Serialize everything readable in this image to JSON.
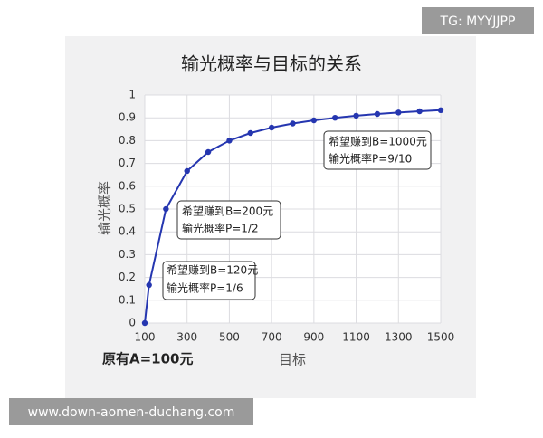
{
  "chart_data": {
    "type": "line",
    "title": "输光概率与目标的关系",
    "x_label": "目标",
    "y_label": "输光概率",
    "x": [
      100,
      120,
      200,
      300,
      400,
      500,
      600,
      700,
      800,
      900,
      1000,
      1100,
      1200,
      1300,
      1400,
      1500
    ],
    "values": [
      0,
      0.1667,
      0.5,
      0.6667,
      0.75,
      0.8,
      0.8333,
      0.8571,
      0.875,
      0.8889,
      0.9,
      0.9091,
      0.9167,
      0.9231,
      0.9286,
      0.9333
    ],
    "color": "#2536b0",
    "xlim": [
      100,
      1500
    ],
    "xticks": [
      100,
      300,
      500,
      700,
      900,
      1100,
      1300,
      1500
    ],
    "ylim": [
      0,
      1
    ],
    "yticks": [
      0,
      0.1,
      0.2,
      0.3,
      0.4,
      0.5,
      0.6,
      0.7,
      0.8,
      0.9,
      1
    ],
    "grid": true,
    "annotations": [
      [
        "希望赚到B=120元",
        "输光概率P=1/6"
      ],
      [
        "希望赚到B=200元",
        "输光概率P=1/2"
      ],
      [
        "希望赚到B=1000元",
        "输光概率P=9/10"
      ]
    ],
    "footnote": "原有A=100元"
  },
  "watermarks": [
    "TG: MYYJJPP",
    "www.down-aomen-duchang.com"
  ]
}
